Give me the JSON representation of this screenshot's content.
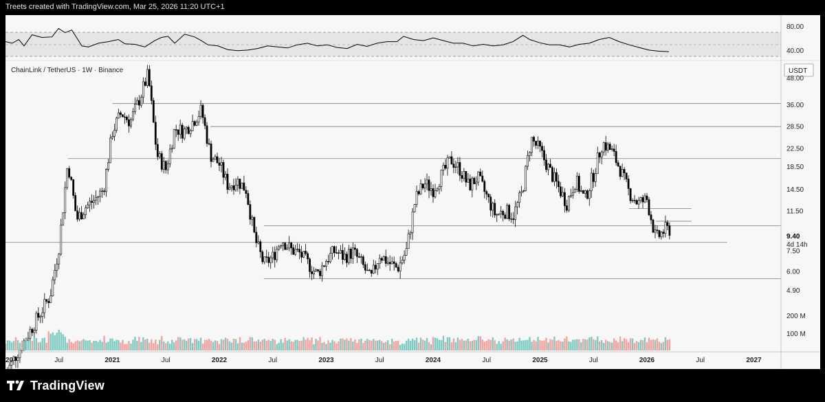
{
  "header": {
    "text": "Treets created with TradingView.com, Mar 25, 2026 11:20 UTC+1"
  },
  "footer": {
    "brand": "TradingView"
  },
  "colors": {
    "up_candle": "#ffffff",
    "candle_outline": "#000000",
    "up_volume": "#7dcbc2",
    "down_volume": "#f3a29d",
    "background": "#f7f7f7",
    "level_line": "#787b86",
    "rsi_line": "#000000"
  },
  "chart_data": {
    "type": "candlestick",
    "symbol_label": "ChainLink / TetherUS · 1W · Binance",
    "currency": "USDT",
    "y_scale": "log",
    "ylim": [
      4.5,
      58
    ],
    "price_ticks": [
      "48.00",
      "36.00",
      "28.50",
      "22.50",
      "18.50",
      "14.50",
      "11.50",
      "9.40",
      "7.50",
      "6.00",
      "4.90"
    ],
    "current_price": {
      "value": "9.40",
      "countdown": "4d 14h"
    },
    "x_ticks": [
      "2020",
      "Jul",
      "2021",
      "Jul",
      "2022",
      "Jul",
      "2023",
      "Jul",
      "2024",
      "Jul",
      "2025",
      "Jul",
      "2026",
      "Jul",
      "2027"
    ],
    "horizontal_levels": [
      {
        "price": 36.5,
        "from": "2021-01",
        "to": "end"
      },
      {
        "price": 28.5,
        "from": "2021-12",
        "to": "end"
      },
      {
        "price": 20.2,
        "from": "2020-08",
        "to": "end"
      },
      {
        "price": 9.8,
        "from": "2022-06",
        "to": "end"
      },
      {
        "price": 8.2,
        "from": "2020-01",
        "to": "2026-10"
      },
      {
        "price": 5.55,
        "from": "2022-06",
        "to": "end"
      }
    ],
    "short_levels": [
      {
        "price": 11.8,
        "from": "2025-11",
        "to": "2026-06"
      },
      {
        "price": 10.3,
        "from": "2026-02",
        "to": "2026-06"
      }
    ],
    "price_path": [
      [
        "2020-01",
        2.0
      ],
      [
        "2020-06",
        4.6
      ],
      [
        "2020-07",
        7.8
      ],
      [
        "2020-08",
        19.5
      ],
      [
        "2020-09",
        10.5
      ],
      [
        "2020-10",
        12.0
      ],
      [
        "2020-11",
        13.0
      ],
      [
        "2020-12",
        14.5
      ],
      [
        "2021-01",
        27.0
      ],
      [
        "2021-02",
        33.0
      ],
      [
        "2021-03",
        30.0
      ],
      [
        "2021-04",
        38.0
      ],
      [
        "2021-05",
        50.0
      ],
      [
        "2021-06",
        21.0
      ],
      [
        "2021-07",
        18.0
      ],
      [
        "2021-08",
        28.0
      ],
      [
        "2021-09",
        27.0
      ],
      [
        "2021-10",
        30.0
      ],
      [
        "2021-11",
        34.0
      ],
      [
        "2021-12",
        21.0
      ],
      [
        "2022-01",
        19.0
      ],
      [
        "2022-02",
        15.0
      ],
      [
        "2022-03",
        16.0
      ],
      [
        "2022-04",
        14.5
      ],
      [
        "2022-05",
        8.5
      ],
      [
        "2022-06",
        6.5
      ],
      [
        "2022-07",
        7.0
      ],
      [
        "2022-08",
        8.5
      ],
      [
        "2022-09",
        7.6
      ],
      [
        "2022-10",
        7.3
      ],
      [
        "2022-11",
        6.5
      ],
      [
        "2022-12",
        5.8
      ],
      [
        "2023-01",
        6.8
      ],
      [
        "2023-02",
        7.5
      ],
      [
        "2023-03",
        7.0
      ],
      [
        "2023-04",
        7.4
      ],
      [
        "2023-05",
        6.5
      ],
      [
        "2023-06",
        5.5
      ],
      [
        "2023-07",
        7.2
      ],
      [
        "2023-08",
        6.6
      ],
      [
        "2023-09",
        6.2
      ],
      [
        "2023-10",
        7.5
      ],
      [
        "2023-11",
        13.0
      ],
      [
        "2023-12",
        15.5
      ],
      [
        "2024-01",
        14.5
      ],
      [
        "2024-02",
        17.0
      ],
      [
        "2024-03",
        20.0
      ],
      [
        "2024-04",
        18.0
      ],
      [
        "2024-05",
        15.0
      ],
      [
        "2024-06",
        16.5
      ],
      [
        "2024-07",
        13.5
      ],
      [
        "2024-08",
        11.0
      ],
      [
        "2024-09",
        11.5
      ],
      [
        "2024-10",
        11.0
      ],
      [
        "2024-11",
        14.0
      ],
      [
        "2024-12",
        25.0
      ],
      [
        "2025-01",
        22.0
      ],
      [
        "2025-02",
        18.0
      ],
      [
        "2025-03",
        15.0
      ],
      [
        "2025-04",
        12.5
      ],
      [
        "2025-05",
        16.0
      ],
      [
        "2025-06",
        13.0
      ],
      [
        "2025-07",
        17.0
      ],
      [
        "2025-08",
        24.0
      ],
      [
        "2025-09",
        22.0
      ],
      [
        "2025-10",
        18.0
      ],
      [
        "2025-11",
        14.0
      ],
      [
        "2025-12",
        12.5
      ],
      [
        "2026-01",
        13.0
      ],
      [
        "2026-02",
        8.5
      ],
      [
        "2026-03",
        9.4
      ]
    ],
    "volume": {
      "scale_ticks": [
        "200 M",
        "100 M"
      ],
      "max_label_value": 200
    },
    "rsi": {
      "ticks": [
        "80.00",
        "40.00"
      ],
      "band_upper": 70,
      "band_lower": 30,
      "mid": 50,
      "path": [
        [
          0.0,
          58
        ],
        [
          0.01,
          55
        ],
        [
          0.02,
          62
        ],
        [
          0.028,
          50
        ],
        [
          0.04,
          71
        ],
        [
          0.055,
          66
        ],
        [
          0.07,
          67
        ],
        [
          0.08,
          83
        ],
        [
          0.09,
          75
        ],
        [
          0.1,
          80
        ],
        [
          0.115,
          50
        ],
        [
          0.125,
          48
        ],
        [
          0.14,
          55
        ],
        [
          0.155,
          58
        ],
        [
          0.17,
          62
        ],
        [
          0.18,
          54
        ],
        [
          0.195,
          53
        ],
        [
          0.21,
          48
        ],
        [
          0.225,
          60
        ],
        [
          0.235,
          66
        ],
        [
          0.245,
          68
        ],
        [
          0.255,
          55
        ],
        [
          0.27,
          72
        ],
        [
          0.285,
          67
        ],
        [
          0.295,
          60
        ],
        [
          0.305,
          52
        ],
        [
          0.32,
          50
        ],
        [
          0.335,
          43
        ],
        [
          0.35,
          41
        ],
        [
          0.365,
          42
        ],
        [
          0.38,
          45
        ],
        [
          0.395,
          50
        ],
        [
          0.41,
          48
        ],
        [
          0.425,
          46
        ],
        [
          0.44,
          52
        ],
        [
          0.455,
          55
        ],
        [
          0.47,
          50
        ],
        [
          0.485,
          52
        ],
        [
          0.5,
          47
        ],
        [
          0.515,
          45
        ],
        [
          0.53,
          53
        ],
        [
          0.545,
          49
        ],
        [
          0.56,
          55
        ],
        [
          0.575,
          58
        ],
        [
          0.59,
          58
        ],
        [
          0.6,
          68
        ],
        [
          0.615,
          62
        ],
        [
          0.63,
          60
        ],
        [
          0.645,
          65
        ],
        [
          0.66,
          60
        ],
        [
          0.675,
          55
        ],
        [
          0.69,
          55
        ],
        [
          0.705,
          50
        ],
        [
          0.72,
          53
        ],
        [
          0.735,
          50
        ],
        [
          0.75,
          52
        ],
        [
          0.765,
          58
        ],
        [
          0.78,
          70
        ],
        [
          0.79,
          62
        ],
        [
          0.805,
          56
        ],
        [
          0.82,
          52
        ],
        [
          0.835,
          52
        ],
        [
          0.85,
          48
        ],
        [
          0.865,
          53
        ],
        [
          0.88,
          55
        ],
        [
          0.895,
          62
        ],
        [
          0.91,
          66
        ],
        [
          0.925,
          58
        ],
        [
          0.94,
          52
        ],
        [
          0.955,
          47
        ],
        [
          0.97,
          42
        ],
        [
          0.985,
          40
        ],
        [
          1.0,
          39
        ]
      ]
    }
  }
}
